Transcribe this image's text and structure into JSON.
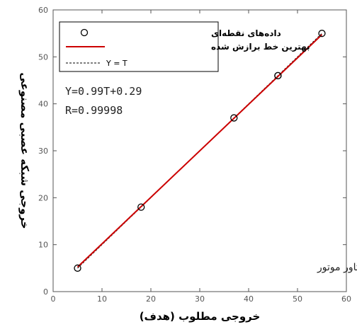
{
  "chart_data": {
    "type": "scatter",
    "xlabel": "خروجی مطلوب (هدف)",
    "ylabel": "خروجی شبکه عصبی مصنوعی",
    "xlim": [
      0,
      60
    ],
    "ylim": [
      0,
      60
    ],
    "xticks": [
      "0",
      "10",
      "20",
      "30",
      "40",
      "50",
      "60"
    ],
    "yticks": [
      "0",
      "10",
      "20",
      "30",
      "40",
      "50",
      "60"
    ],
    "grid": false,
    "legend_position": "top-left",
    "series": [
      {
        "name": "داده‌های نقطه‌ای",
        "kind": "markers",
        "marker": "circle",
        "color": "#000000",
        "x": [
          5,
          18,
          37,
          46,
          46,
          55
        ],
        "y": [
          5,
          18,
          37,
          46,
          46,
          55
        ]
      },
      {
        "name": "بهترین خط برازش شده",
        "kind": "line",
        "color": "#cc0000",
        "x": [
          5,
          55
        ],
        "y": [
          5.24,
          54.74
        ]
      },
      {
        "name": "Y = T",
        "kind": "line-dashed",
        "color": "#000000",
        "x": [
          5,
          55
        ],
        "y": [
          5,
          55
        ]
      }
    ],
    "annotations": [
      "Y=0.99T+0.29",
      "R=0.99998",
      "گشتاور موتور"
    ]
  }
}
